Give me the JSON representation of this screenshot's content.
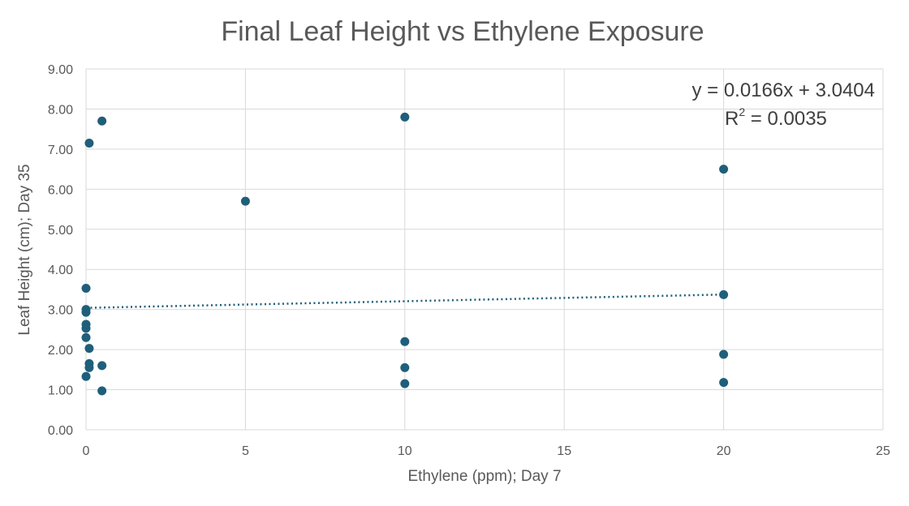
{
  "chart_data": {
    "type": "scatter",
    "title": "Final Leaf Height vs Ethylene Exposure",
    "xlabel": "Ethylene (ppm); Day 7",
    "ylabel": "Leaf Height (cm); Day 35",
    "xlim": [
      0,
      25
    ],
    "ylim": [
      0,
      9
    ],
    "x_ticks": [
      0,
      5,
      10,
      15,
      20,
      25
    ],
    "y_ticks": [
      0,
      1,
      2,
      3,
      4,
      5,
      6,
      7,
      8,
      9
    ],
    "y_tick_labels": [
      "0.00",
      "1.00",
      "2.00",
      "3.00",
      "4.00",
      "5.00",
      "6.00",
      "7.00",
      "8.00",
      "9.00"
    ],
    "grid": true,
    "marker_color": "#1f5f7a",
    "trendline": {
      "type": "linear",
      "slope": 0.0166,
      "intercept": 3.0404,
      "x_range": [
        0,
        20
      ],
      "style": "dotted",
      "equation_text": "y = 0.0166x + 3.0404",
      "r2_label": "R",
      "r2_exponent": "2",
      "r2_value_text": " = 0.0035"
    },
    "points": [
      {
        "x": 0,
        "y": 3.53
      },
      {
        "x": 0,
        "y": 3.0
      },
      {
        "x": 0,
        "y": 2.93
      },
      {
        "x": 0,
        "y": 2.63
      },
      {
        "x": 0,
        "y": 2.53
      },
      {
        "x": 0,
        "y": 2.3
      },
      {
        "x": 0,
        "y": 1.33
      },
      {
        "x": 0.1,
        "y": 7.15
      },
      {
        "x": 0.1,
        "y": 2.03
      },
      {
        "x": 0.1,
        "y": 1.65
      },
      {
        "x": 0.1,
        "y": 1.55
      },
      {
        "x": 0.5,
        "y": 7.7
      },
      {
        "x": 0.5,
        "y": 1.6
      },
      {
        "x": 0.5,
        "y": 0.97
      },
      {
        "x": 5,
        "y": 5.7
      },
      {
        "x": 10,
        "y": 7.8
      },
      {
        "x": 10,
        "y": 2.2
      },
      {
        "x": 10,
        "y": 1.55
      },
      {
        "x": 10,
        "y": 1.15
      },
      {
        "x": 20,
        "y": 6.5
      },
      {
        "x": 20,
        "y": 3.37
      },
      {
        "x": 20,
        "y": 1.88
      },
      {
        "x": 20,
        "y": 1.18
      }
    ]
  }
}
